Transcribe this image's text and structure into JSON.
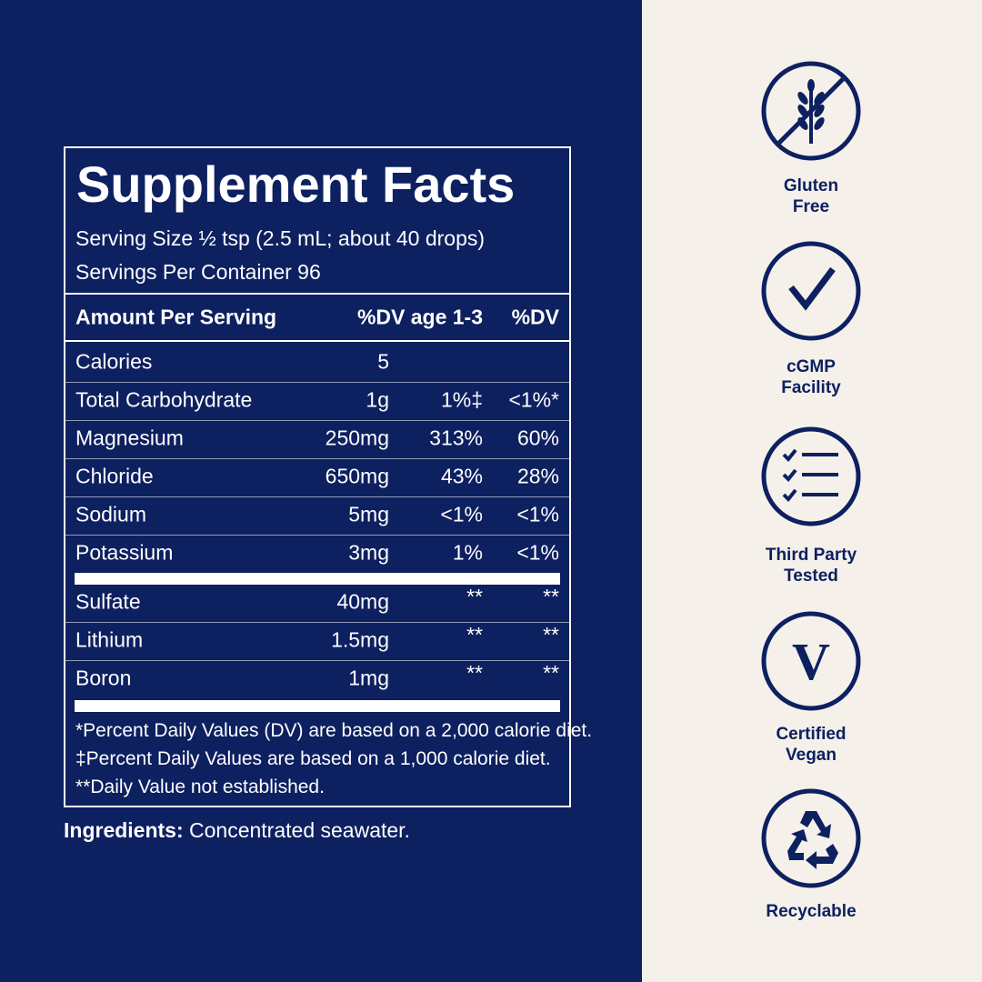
{
  "panel": {
    "title": "Supplement Facts",
    "serving_size": "Serving Size ½ tsp (2.5 mL; about 40 drops)",
    "servings_per_container": "Servings Per Container 96",
    "header": {
      "amount": "Amount Per Serving",
      "dv_age": "%DV age 1-3",
      "dv": "%DV"
    },
    "rows": [
      {
        "name": "Calories",
        "amount": "5",
        "dv_age": "",
        "dv": ""
      },
      {
        "name": "Total Carbohydrate",
        "amount": "1g",
        "dv_age": "1%‡",
        "dv": "<1%*"
      },
      {
        "name": "Magnesium",
        "amount": "250mg",
        "dv_age": "313%",
        "dv": "60%"
      },
      {
        "name": "Chloride",
        "amount": "650mg",
        "dv_age": "43%",
        "dv": "28%"
      },
      {
        "name": "Sodium",
        "amount": "5mg",
        "dv_age": "<1%",
        "dv": "<1%"
      },
      {
        "name": "Potassium",
        "amount": "3mg",
        "dv_age": "1%",
        "dv": "<1%"
      }
    ],
    "rows2": [
      {
        "name": "Sulfate",
        "amount": "40mg",
        "dv_age": "**",
        "dv": "**"
      },
      {
        "name": "Lithium",
        "amount": "1.5mg",
        "dv_age": "**",
        "dv": "**"
      },
      {
        "name": "Boron",
        "amount": "1mg",
        "dv_age": "**",
        "dv": "**"
      }
    ],
    "notes": [
      "*Percent Daily Values (DV) are based on a 2,000 calorie diet.",
      "‡Percent Daily Values are based on a 1,000 calorie diet.",
      "**Daily Value not established."
    ]
  },
  "ingredients": {
    "label": "Ingredients:",
    "text": " Concentrated seawater."
  },
  "badges": [
    {
      "icon": "gluten-free-icon",
      "line1": "Gluten",
      "line2": "Free"
    },
    {
      "icon": "checkmark-icon",
      "line1": "cGMP",
      "line2": "Facility"
    },
    {
      "icon": "checklist-icon",
      "line1": "Third Party",
      "line2": "Tested"
    },
    {
      "icon": "vegan-v-icon",
      "line1": "Certified",
      "line2": "Vegan"
    },
    {
      "icon": "recycle-icon",
      "line1": "Recyclable",
      "line2": ""
    }
  ],
  "colors": {
    "navy": "#0d2060",
    "cream": "#f5f0ea",
    "white": "#ffffff"
  }
}
